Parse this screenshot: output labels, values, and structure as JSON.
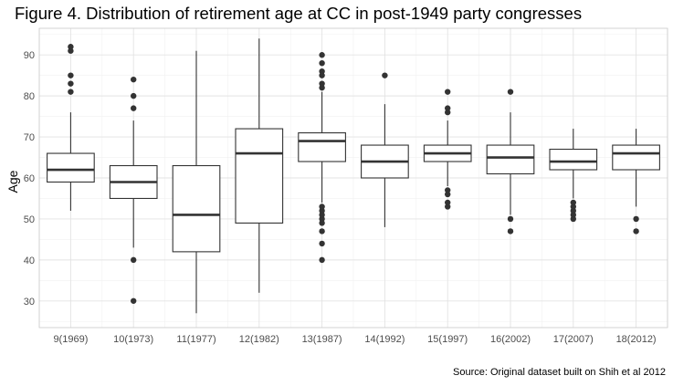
{
  "chart_data": {
    "type": "boxplot",
    "title": "Figure 4. Distribution of retirement age at CC in post-1949 party congresses",
    "caption": "Source: Original dataset built on Shih et al 2012",
    "xlabel": "",
    "ylabel": "Age",
    "ylim": [
      23.5,
      96.5
    ],
    "yticks": [
      30,
      40,
      50,
      60,
      70,
      80,
      90
    ],
    "grid": true,
    "categories": [
      "9(1969)",
      "10(1973)",
      "11(1977)",
      "12(1982)",
      "13(1987)",
      "14(1992)",
      "15(1997)",
      "16(2002)",
      "17(2007)",
      "18(2012)"
    ],
    "boxes": [
      {
        "category": "9(1969)",
        "min": 52,
        "q1": 59,
        "median": 62,
        "q3": 66,
        "max": 76,
        "outliers": [
          81,
          83,
          85,
          91,
          92
        ]
      },
      {
        "category": "10(1973)",
        "min": 43,
        "q1": 55,
        "median": 59,
        "q3": 63,
        "max": 74,
        "outliers": [
          30,
          40,
          77,
          80,
          84
        ]
      },
      {
        "category": "11(1977)",
        "min": 27,
        "q1": 42,
        "median": 51,
        "q3": 63,
        "max": 91,
        "outliers": []
      },
      {
        "category": "12(1982)",
        "min": 32,
        "q1": 49,
        "median": 66,
        "q3": 72,
        "max": 94,
        "outliers": []
      },
      {
        "category": "13(1987)",
        "min": 54,
        "q1": 64,
        "median": 69,
        "q3": 71,
        "max": 81,
        "outliers": [
          40,
          44,
          47,
          49,
          50,
          51,
          52,
          53,
          82,
          83,
          85,
          86,
          88,
          90
        ]
      },
      {
        "category": "14(1992)",
        "min": 48,
        "q1": 60,
        "median": 64,
        "q3": 68,
        "max": 78,
        "outliers": [
          85
        ]
      },
      {
        "category": "15(1997)",
        "min": 58,
        "q1": 64,
        "median": 66,
        "q3": 68,
        "max": 74,
        "outliers": [
          53,
          54,
          56,
          57,
          76,
          77,
          81
        ]
      },
      {
        "category": "16(2002)",
        "min": 51,
        "q1": 61,
        "median": 65,
        "q3": 68,
        "max": 76,
        "outliers": [
          47,
          50,
          81
        ]
      },
      {
        "category": "17(2007)",
        "min": 55,
        "q1": 62,
        "median": 64,
        "q3": 67,
        "max": 72,
        "outliers": [
          50,
          51,
          52,
          53,
          54
        ]
      },
      {
        "category": "18(2012)",
        "min": 53,
        "q1": 62,
        "median": 66,
        "q3": 68,
        "max": 72,
        "outliers": [
          47,
          50
        ]
      }
    ]
  }
}
